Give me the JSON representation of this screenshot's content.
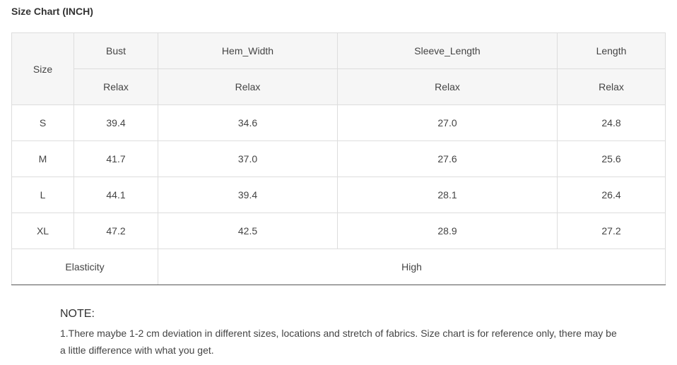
{
  "title": "Size Chart (INCH)",
  "table": {
    "size_label": "Size",
    "columns": [
      "Bust",
      "Hem_Width",
      "Sleeve_Length",
      "Length"
    ],
    "fit": [
      "Relax",
      "Relax",
      "Relax",
      "Relax"
    ],
    "rows": [
      {
        "size": "S",
        "values": [
          "39.4",
          "34.6",
          "27.0",
          "24.8"
        ]
      },
      {
        "size": "M",
        "values": [
          "41.7",
          "37.0",
          "27.6",
          "25.6"
        ]
      },
      {
        "size": "L",
        "values": [
          "44.1",
          "39.4",
          "28.1",
          "26.4"
        ]
      },
      {
        "size": "XL",
        "values": [
          "47.2",
          "42.5",
          "28.9",
          "27.2"
        ]
      }
    ],
    "elasticity_label": "Elasticity",
    "elasticity_value": "High"
  },
  "note": {
    "title": "NOTE:",
    "text": "1.There maybe 1-2 cm deviation in different sizes, locations and stretch of fabrics. Size chart is for reference only, there may be a little difference with what you get."
  }
}
